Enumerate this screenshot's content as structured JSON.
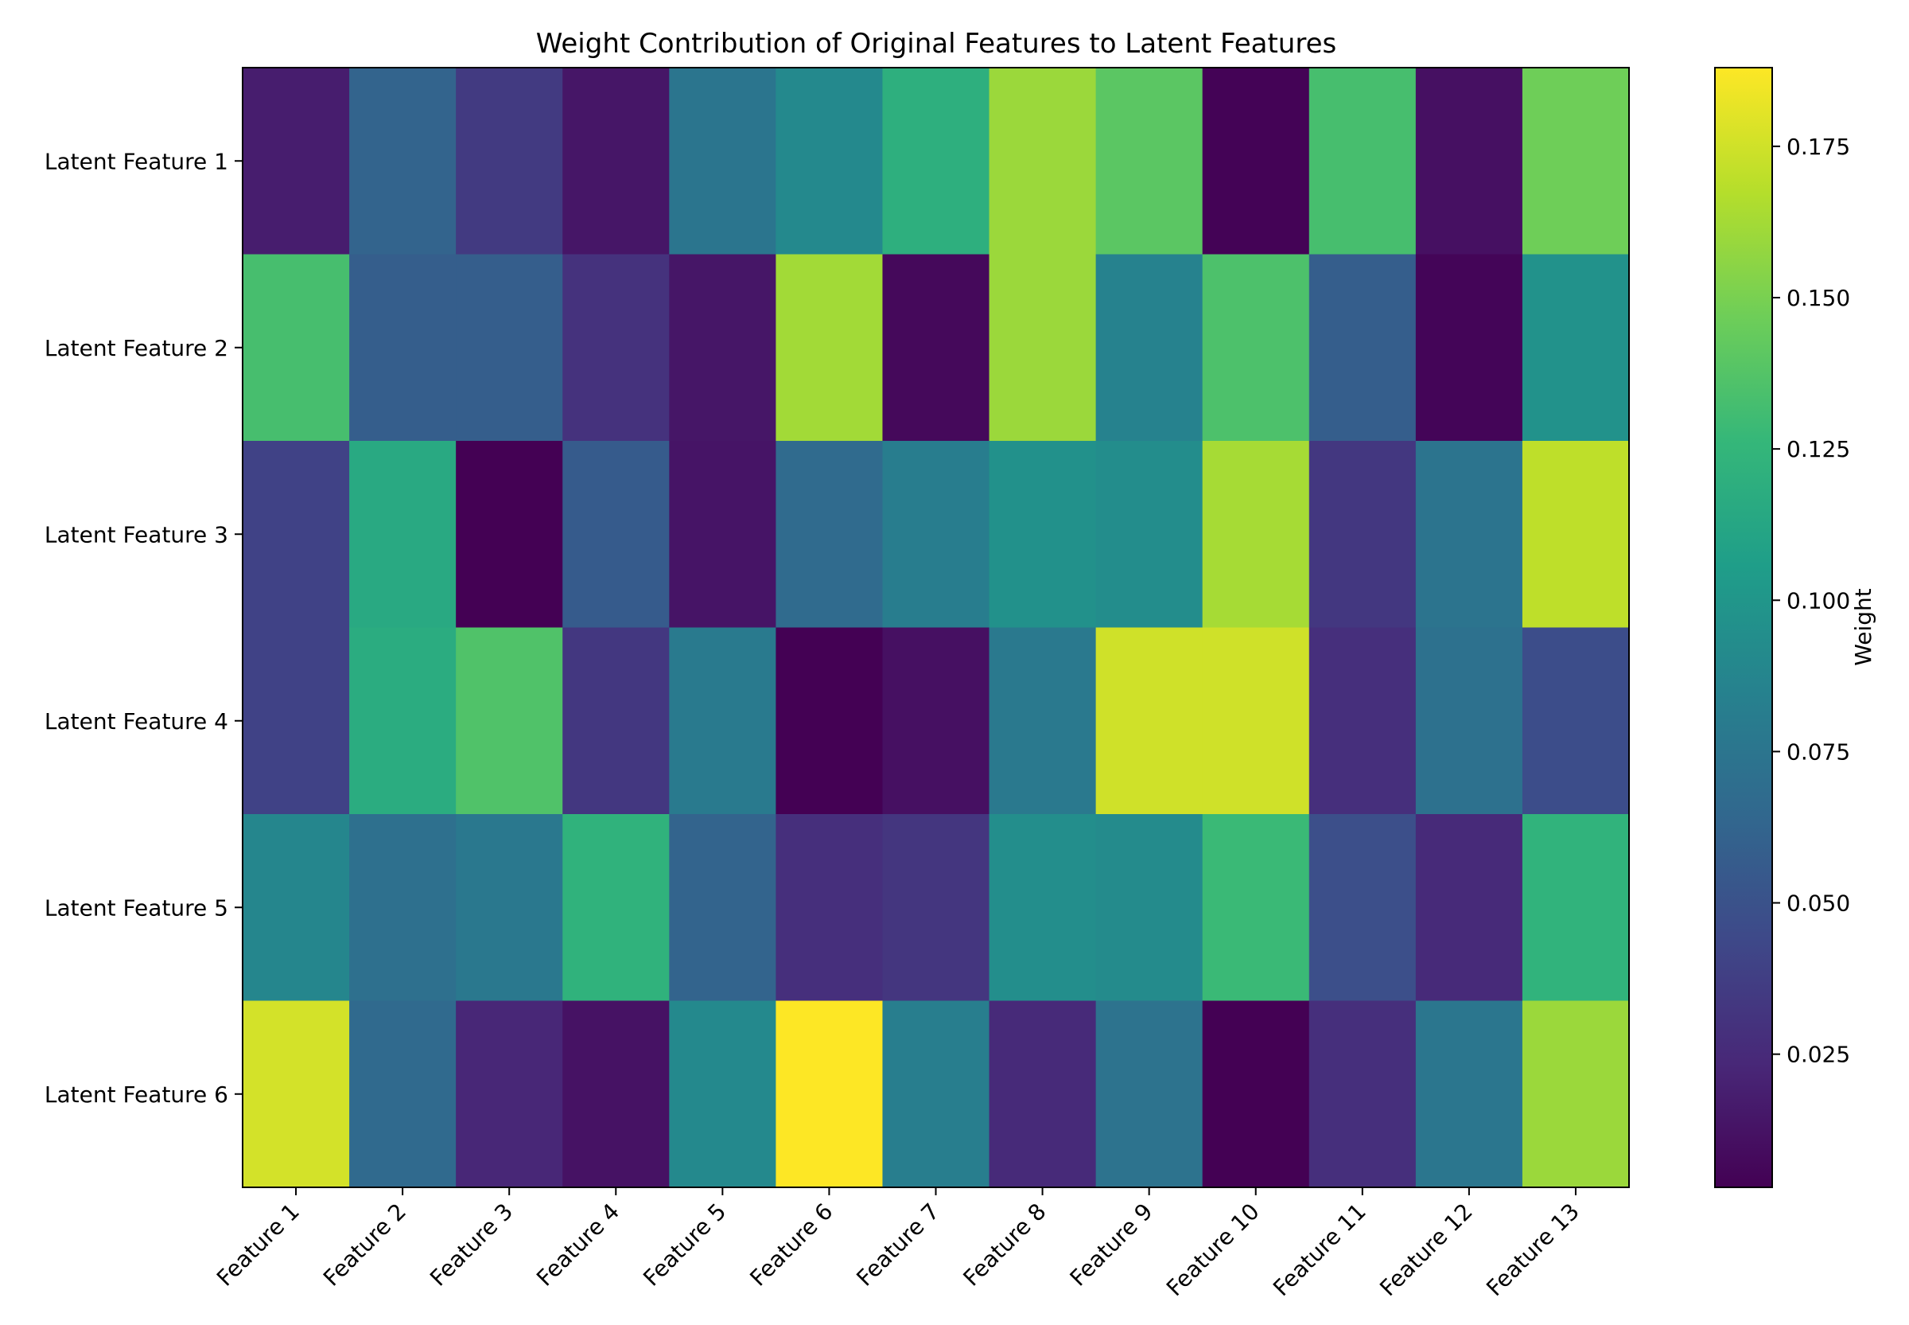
{
  "chart_data": {
    "type": "heatmap",
    "title": "Weight Contribution of Original Features to Latent Features",
    "x_labels": [
      "Feature 1",
      "Feature 2",
      "Feature 3",
      "Feature 4",
      "Feature 5",
      "Feature 6",
      "Feature 7",
      "Feature 8",
      "Feature 9",
      "Feature 10",
      "Feature 11",
      "Feature 12",
      "Feature 13"
    ],
    "y_labels": [
      "Latent Feature 1",
      "Latent Feature 2",
      "Latent Feature 3",
      "Latent Feature 4",
      "Latent Feature 5",
      "Latent Feature 6"
    ],
    "values": [
      [
        0.018,
        0.062,
        0.035,
        0.014,
        0.075,
        0.09,
        0.12,
        0.16,
        0.14,
        0.004,
        0.133,
        0.011,
        0.147
      ],
      [
        0.133,
        0.058,
        0.058,
        0.03,
        0.014,
        0.162,
        0.007,
        0.16,
        0.085,
        0.135,
        0.058,
        0.005,
        0.097
      ],
      [
        0.04,
        0.115,
        0.003,
        0.056,
        0.013,
        0.067,
        0.081,
        0.096,
        0.093,
        0.163,
        0.033,
        0.074,
        0.17
      ],
      [
        0.04,
        0.117,
        0.136,
        0.033,
        0.079,
        0.003,
        0.011,
        0.078,
        0.175,
        0.175,
        0.028,
        0.072,
        0.047
      ],
      [
        0.088,
        0.071,
        0.077,
        0.122,
        0.062,
        0.028,
        0.032,
        0.094,
        0.092,
        0.128,
        0.048,
        0.025,
        0.123
      ],
      [
        0.176,
        0.066,
        0.023,
        0.012,
        0.09,
        0.188,
        0.082,
        0.025,
        0.073,
        0.003,
        0.028,
        0.076,
        0.16
      ]
    ],
    "vmin": 0.003,
    "vmax": 0.188,
    "colormap": "viridis",
    "colorbar": {
      "label": "Weight",
      "ticks": [
        0.025,
        0.05,
        0.075,
        0.1,
        0.125,
        0.15,
        0.175
      ],
      "tick_labels": [
        "0.025",
        "0.050",
        "0.075",
        "0.100",
        "0.125",
        "0.150",
        "0.175"
      ]
    },
    "viridis_stops": [
      "#440154",
      "#482878",
      "#3e4989",
      "#31688e",
      "#26828e",
      "#1f9e89",
      "#35b779",
      "#6ece58",
      "#b5de2b",
      "#fde725"
    ]
  }
}
